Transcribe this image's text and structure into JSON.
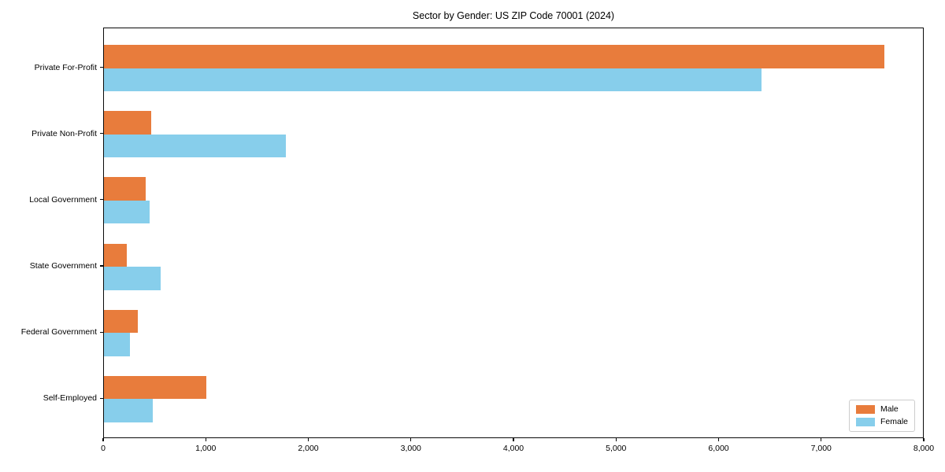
{
  "title": "Sector by Gender: US ZIP Code 70001 (2024)",
  "colors": {
    "male": "#e87c3c",
    "female": "#87ceeb",
    "axis": "#0a0a0a",
    "legend_border": "#cccccc",
    "background": "#ffffff"
  },
  "chart_data": {
    "type": "bar",
    "orientation": "horizontal",
    "title": "Sector by Gender: US ZIP Code 70001 (2024)",
    "xlabel": "",
    "ylabel": "",
    "categories": [
      "Private For-Profit",
      "Private Non-Profit",
      "Local Government",
      "State Government",
      "Federal Government",
      "Self-Employed"
    ],
    "series": [
      {
        "name": "Male",
        "color": "#e87c3c",
        "values": [
          7620,
          460,
          410,
          220,
          330,
          1000
        ]
      },
      {
        "name": "Female",
        "color": "#87ceeb",
        "values": [
          6420,
          1780,
          445,
          550,
          255,
          480
        ]
      }
    ],
    "xlim": [
      0,
      8000
    ],
    "xticks": [
      0,
      1000,
      2000,
      3000,
      4000,
      5000,
      6000,
      7000,
      8000
    ],
    "xtick_labels": [
      "0",
      "1,000",
      "2,000",
      "3,000",
      "4,000",
      "5,000",
      "6,000",
      "7,000",
      "8,000"
    ],
    "grid": false,
    "legend_position": "lower right"
  },
  "legend": {
    "items": [
      {
        "label": "Male",
        "color": "#e87c3c"
      },
      {
        "label": "Female",
        "color": "#87ceeb"
      }
    ]
  }
}
